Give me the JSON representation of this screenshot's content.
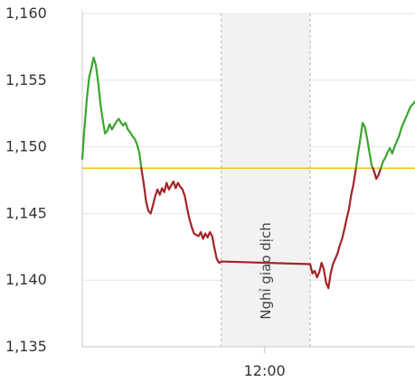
{
  "chart_data": {
    "type": "line",
    "ylim": [
      1135,
      1160
    ],
    "y_ticks": [
      "1,160",
      "1,155",
      "1,150",
      "1,145",
      "1,140",
      "1,135"
    ],
    "x_ticks": [
      "12:00"
    ],
    "reference_line": {
      "value": 1148.4,
      "color": "#f2c21b"
    },
    "break_band": {
      "label": "Nghỉ giao dịch"
    },
    "colors": {
      "above": "#3aa52f",
      "below": "#a42326"
    },
    "series": [
      {
        "values": [
          [
            0,
            1149.1
          ],
          [
            1,
            1151.5
          ],
          [
            2,
            1153.6
          ],
          [
            3,
            1155.2
          ],
          [
            4,
            1155.9
          ],
          [
            5,
            1156.7
          ],
          [
            6,
            1156.1
          ],
          [
            7,
            1154.8
          ],
          [
            8,
            1153.2
          ],
          [
            9,
            1152.0
          ],
          [
            10,
            1151.0
          ],
          [
            11,
            1151.2
          ],
          [
            12,
            1151.7
          ],
          [
            13,
            1151.3
          ],
          [
            14,
            1151.6
          ],
          [
            15,
            1151.9
          ],
          [
            16,
            1152.1
          ],
          [
            17,
            1151.8
          ],
          [
            18,
            1151.6
          ],
          [
            19,
            1151.8
          ],
          [
            20,
            1151.3
          ],
          [
            21,
            1151.1
          ],
          [
            22,
            1150.8
          ],
          [
            23,
            1150.6
          ],
          [
            24,
            1150.2
          ],
          [
            25,
            1149.6
          ],
          [
            26,
            1148.3
          ],
          [
            27,
            1147.2
          ],
          [
            28,
            1145.9
          ],
          [
            29,
            1145.2
          ],
          [
            30,
            1145.0
          ],
          [
            31,
            1145.6
          ],
          [
            32,
            1146.3
          ],
          [
            33,
            1146.8
          ],
          [
            34,
            1146.4
          ],
          [
            35,
            1146.9
          ],
          [
            36,
            1146.6
          ],
          [
            37,
            1147.3
          ],
          [
            38,
            1146.8
          ],
          [
            39,
            1147.1
          ],
          [
            40,
            1147.4
          ],
          [
            41,
            1146.9
          ],
          [
            42,
            1147.3
          ],
          [
            43,
            1147.0
          ],
          [
            44,
            1146.8
          ],
          [
            45,
            1146.3
          ],
          [
            46,
            1145.4
          ],
          [
            47,
            1144.6
          ],
          [
            48,
            1144.0
          ],
          [
            49,
            1143.5
          ],
          [
            50,
            1143.4
          ],
          [
            51,
            1143.3
          ],
          [
            52,
            1143.6
          ],
          [
            53,
            1143.1
          ],
          [
            54,
            1143.5
          ],
          [
            55,
            1143.2
          ],
          [
            56,
            1143.6
          ],
          [
            57,
            1143.3
          ],
          [
            58,
            1142.4
          ],
          [
            59,
            1141.6
          ],
          [
            60,
            1141.3
          ],
          [
            61,
            1141.4
          ],
          [
            100,
            1141.2
          ],
          [
            101,
            1140.5
          ],
          [
            102,
            1140.7
          ],
          [
            103,
            1140.2
          ],
          [
            104,
            1140.6
          ],
          [
            105,
            1141.3
          ],
          [
            106,
            1140.8
          ],
          [
            107,
            1139.8
          ],
          [
            108,
            1139.4
          ],
          [
            109,
            1140.5
          ],
          [
            110,
            1141.2
          ],
          [
            111,
            1141.6
          ],
          [
            112,
            1142.0
          ],
          [
            113,
            1142.6
          ],
          [
            114,
            1143.1
          ],
          [
            115,
            1143.8
          ],
          [
            116,
            1144.6
          ],
          [
            117,
            1145.3
          ],
          [
            118,
            1146.4
          ],
          [
            119,
            1147.2
          ],
          [
            120,
            1148.3
          ],
          [
            121,
            1149.5
          ],
          [
            122,
            1150.6
          ],
          [
            123,
            1151.8
          ],
          [
            124,
            1151.5
          ],
          [
            125,
            1150.6
          ],
          [
            126,
            1149.6
          ],
          [
            127,
            1148.6
          ],
          [
            128,
            1148.2
          ],
          [
            129,
            1147.6
          ],
          [
            130,
            1147.9
          ],
          [
            131,
            1148.4
          ],
          [
            132,
            1148.9
          ],
          [
            133,
            1149.2
          ],
          [
            134,
            1149.6
          ],
          [
            135,
            1149.9
          ],
          [
            136,
            1149.5
          ],
          [
            137,
            1150.0
          ],
          [
            138,
            1150.4
          ],
          [
            139,
            1150.8
          ],
          [
            140,
            1151.4
          ],
          [
            141,
            1151.8
          ],
          [
            142,
            1152.2
          ],
          [
            143,
            1152.6
          ],
          [
            144,
            1153.0
          ],
          [
            145,
            1153.2
          ],
          [
            146,
            1153.4
          ]
        ]
      }
    ],
    "x_domain": [
      0,
      146
    ],
    "break_range": [
      61,
      100
    ],
    "x_tick_positions": [
      80
    ]
  }
}
